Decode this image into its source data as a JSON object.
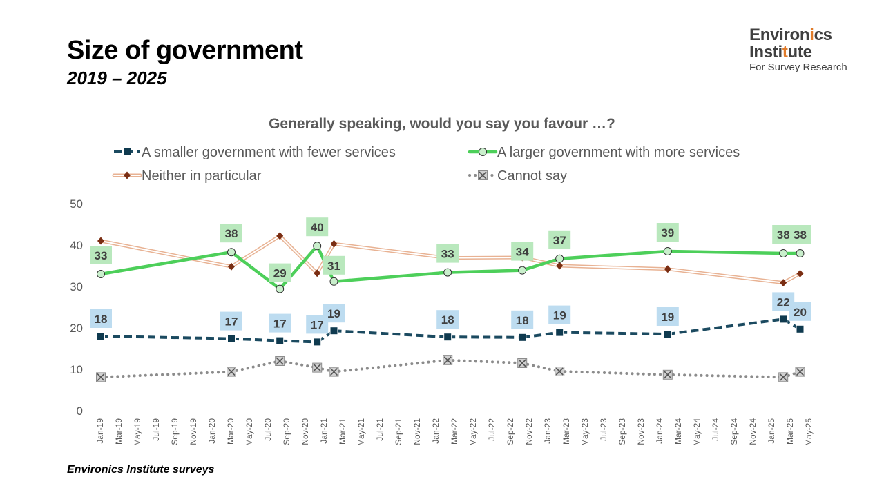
{
  "header": {
    "title": "Size of government",
    "subtitle": "2019 – 2025"
  },
  "logo": {
    "line1_a": "Environ",
    "line1_b": "i",
    "line1_c": "cs",
    "line2_a": "Insti",
    "line2_b": "t",
    "line2_c": "ute",
    "line3": "For Survey Research",
    "accent": "#e07b2a"
  },
  "footer": {
    "source": "Environics Institute surveys"
  },
  "chart_data": {
    "type": "line",
    "title": "Generally speaking, would you say you favour …?",
    "ylim": [
      0,
      50
    ],
    "yticks": [
      0,
      10,
      20,
      30,
      40,
      50
    ],
    "x_labels": [
      "Jan-19",
      "Mar-19",
      "May-19",
      "Jul-19",
      "Sep-19",
      "Nov-19",
      "Jan-20",
      "Mar-20",
      "May-20",
      "Jul-20",
      "Sep-20",
      "Nov-20",
      "Jan-21",
      "Mar-21",
      "May-21",
      "Jul-21",
      "Sep-21",
      "Nov-21",
      "Jan-22",
      "Mar-22",
      "May-22",
      "Jul-22",
      "Sep-22",
      "Nov-22",
      "Jan-23",
      "Mar-23",
      "May-23",
      "Jul-23",
      "Sep-23",
      "Nov-23",
      "Jan-24",
      "Mar-24",
      "May-24",
      "Jul-24",
      "Sep-24",
      "Nov-24",
      "Jan-25",
      "Mar-25",
      "May-25"
    ],
    "series": [
      {
        "name": "A smaller government with fewer services",
        "color": "#1b4a60",
        "label_bg": "#bddcf0",
        "style": "dashed-square",
        "points": [
          {
            "x": 0.0,
            "y": 18,
            "label": "18"
          },
          {
            "x": 7.0,
            "y": 17.4,
            "label": "17"
          },
          {
            "x": 9.6,
            "y": 16.9,
            "label": "17"
          },
          {
            "x": 11.6,
            "y": 16.6,
            "label": "17"
          },
          {
            "x": 12.5,
            "y": 19.3,
            "label": "19"
          },
          {
            "x": 18.6,
            "y": 17.8,
            "label": "18"
          },
          {
            "x": 22.6,
            "y": 17.7,
            "label": "18"
          },
          {
            "x": 24.6,
            "y": 18.9,
            "label": "19"
          },
          {
            "x": 30.4,
            "y": 18.5,
            "label": "19"
          },
          {
            "x": 36.6,
            "y": 22.1,
            "label": "22"
          },
          {
            "x": 37.5,
            "y": 19.7,
            "label": "20"
          }
        ]
      },
      {
        "name": "A larger government with more services",
        "color": "#4dcf5a",
        "label_bg": "#b9e8bd",
        "style": "solid-circle",
        "points": [
          {
            "x": 0.0,
            "y": 33,
            "label": "33"
          },
          {
            "x": 7.0,
            "y": 38.3,
            "label": "38"
          },
          {
            "x": 9.6,
            "y": 29.4,
            "label": "29"
          },
          {
            "x": 11.6,
            "y": 39.8,
            "label": "40"
          },
          {
            "x": 12.5,
            "y": 31.2,
            "label": "31"
          },
          {
            "x": 18.6,
            "y": 33.4,
            "label": "33"
          },
          {
            "x": 22.6,
            "y": 33.9,
            "label": "34"
          },
          {
            "x": 24.6,
            "y": 36.7,
            "label": "37"
          },
          {
            "x": 30.4,
            "y": 38.5,
            "label": "39"
          },
          {
            "x": 36.6,
            "y": 38,
            "label": "38"
          },
          {
            "x": 37.5,
            "y": 38,
            "label": "38"
          }
        ]
      },
      {
        "name": "Neither in particular",
        "color": "#e8b293",
        "marker_color": "#7a2d12",
        "style": "double-diamond",
        "points": [
          {
            "x": 0.0,
            "y": 41
          },
          {
            "x": 7.0,
            "y": 34.8
          },
          {
            "x": 9.6,
            "y": 42.2
          },
          {
            "x": 11.6,
            "y": 33.2
          },
          {
            "x": 12.5,
            "y": 40.3
          },
          {
            "x": 18.6,
            "y": 36.9
          },
          {
            "x": 22.6,
            "y": 37
          },
          {
            "x": 24.6,
            "y": 35
          },
          {
            "x": 30.4,
            "y": 34.2
          },
          {
            "x": 36.6,
            "y": 30.9
          },
          {
            "x": 37.5,
            "y": 33.1
          }
        ]
      },
      {
        "name": "Cannot say",
        "color": "#8c8c8c",
        "style": "dotted-x",
        "points": [
          {
            "x": 0.0,
            "y": 8.1
          },
          {
            "x": 7.0,
            "y": 9.4
          },
          {
            "x": 9.6,
            "y": 12
          },
          {
            "x": 11.6,
            "y": 10.4
          },
          {
            "x": 12.5,
            "y": 9.4
          },
          {
            "x": 18.6,
            "y": 12.2
          },
          {
            "x": 22.6,
            "y": 11.5
          },
          {
            "x": 24.6,
            "y": 9.5
          },
          {
            "x": 30.4,
            "y": 8.7
          },
          {
            "x": 36.6,
            "y": 8.1
          },
          {
            "x": 37.5,
            "y": 9.4
          }
        ]
      }
    ]
  }
}
